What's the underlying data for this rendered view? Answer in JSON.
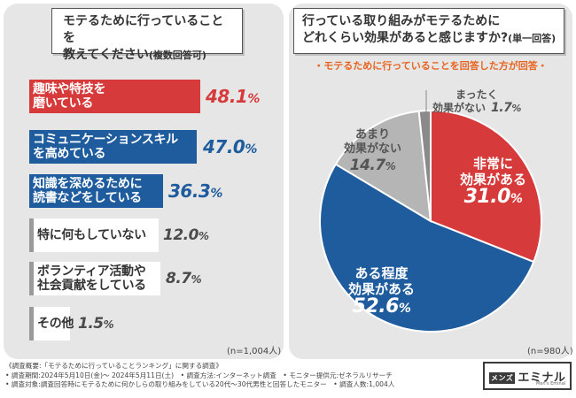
{
  "colors": {
    "red": "#d63a3a",
    "blue": "#1e5c9e",
    "gray": "#b5b5b5",
    "dark_gray": "#8a8a8a",
    "orange": "#e8631f",
    "panel": "#e6e6e6"
  },
  "left": {
    "title_line1": "モテるために行っていることを",
    "title_line2": "教えてください",
    "title_note": "(複数回答可)",
    "n_label": "(n=1,004人)"
  },
  "right": {
    "title_line1": "行っている取り組みがモテるために",
    "title_line2": "どれくらい効果があると感じますか?",
    "title_note": "(単一回答)",
    "subtitle": "・モテるために行っていることを回答した方が回答・",
    "n_label": "(n=980人)"
  },
  "chart_data": [
    {
      "type": "bar",
      "orientation": "horizontal",
      "title": "モテるために行っていることを教えてください(複数回答可)",
      "unit": "%",
      "categories": [
        "趣味や特技を磨いている",
        "コミュニケーションスキルを高めている",
        "知識を深めるために読書などをしている",
        "特に何もしていない",
        "ボランティア活動や社会貢献をしている",
        "その他"
      ],
      "values": [
        48.1,
        47.0,
        36.3,
        12.0,
        8.7,
        1.5
      ],
      "n": "n=1,004人",
      "bars": [
        {
          "line1": "趣味や特技を",
          "line2": "磨いている",
          "int": "48",
          "dec": ".1",
          "unit": "%",
          "value": 48.1
        },
        {
          "line1": "コミュニケーションスキル",
          "line2": "を高めている",
          "int": "47",
          "dec": ".0",
          "unit": "%",
          "value": 47.0
        },
        {
          "line1": "知識を深めるために",
          "line2": "読書などをしている",
          "int": "36",
          "dec": ".3",
          "unit": "%",
          "value": 36.3
        },
        {
          "line1": "特に何もしていない",
          "line2": "",
          "int": "12",
          "dec": ".0",
          "unit": "%",
          "value": 12.0
        },
        {
          "line1": "ボランティア活動や",
          "line2": "社会貢献をしている",
          "int": "8",
          "dec": ".7",
          "unit": "%",
          "value": 8.7
        },
        {
          "line1": "その他",
          "line2": "",
          "int": "1",
          "dec": ".5",
          "unit": "%",
          "value": 1.5
        }
      ]
    },
    {
      "type": "pie",
      "title": "行っている取り組みがモテるためにどれくらい効果があると感じますか?(単一回答)",
      "unit": "%",
      "categories": [
        "非常に効果がある",
        "ある程度効果がある",
        "あまり効果がない",
        "まったく効果がない"
      ],
      "values": [
        31.0,
        52.6,
        14.7,
        1.7
      ],
      "n": "n=980人",
      "slices": [
        {
          "line1": "非常に",
          "line2": "効果がある",
          "int": "31",
          "dec": ".0",
          "unit": "%",
          "value": 31.0
        },
        {
          "line1": "ある程度",
          "line2": "効果がある",
          "int": "52",
          "dec": ".6",
          "unit": "%",
          "value": 52.6
        },
        {
          "line1": "あまり",
          "line2": "効果がない",
          "int": "14",
          "dec": ".7",
          "unit": "%",
          "value": 14.7
        },
        {
          "line1": "まったく",
          "line2": "効果がない",
          "int": "1",
          "dec": ".7",
          "unit": "%",
          "value": 1.7
        }
      ]
    }
  ],
  "footer": {
    "line1": "《調査概要:「モテるために行っていることランキング」に関する調査》",
    "line2": "• 調査期間:2024年5月10日(金)～ 2024年5月11日(土)　• 調査方法:インターネット調査　• モニター提供元:ゼネラルリサーチ",
    "line3": "• 調査対象:調査回答時にモテるために何かしらの取り組みをしている20代～30代男性と回答したモニター　• 調査人数:1,004人"
  },
  "logo": {
    "boxed": "メンズ",
    "name": "エミナル",
    "sub": "Men's Eminal"
  }
}
